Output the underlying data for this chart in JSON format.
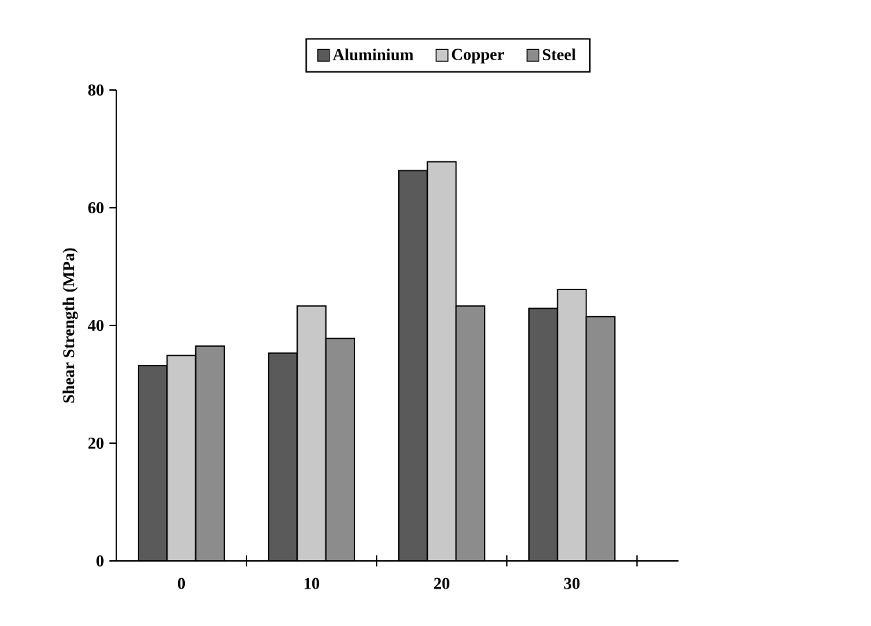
{
  "chart_data": {
    "type": "bar",
    "ylabel": "Shear Strength (MPa)",
    "categories": [
      "0",
      "10",
      "20",
      "30"
    ],
    "series": [
      {
        "name": "Aluminium",
        "color": "#5a5a5a",
        "values": [
          33.2,
          35.3,
          66.3,
          42.9
        ]
      },
      {
        "name": "Copper",
        "color": "#c8c8c8",
        "values": [
          34.9,
          43.3,
          67.8,
          46.1
        ]
      },
      {
        "name": "Steel",
        "color": "#8c8c8c",
        "values": [
          36.5,
          37.8,
          43.3,
          41.5
        ]
      }
    ],
    "ylim": [
      0,
      80
    ],
    "yticks": [
      0,
      20,
      40,
      60,
      80
    ],
    "legend": "top",
    "grid": false
  }
}
